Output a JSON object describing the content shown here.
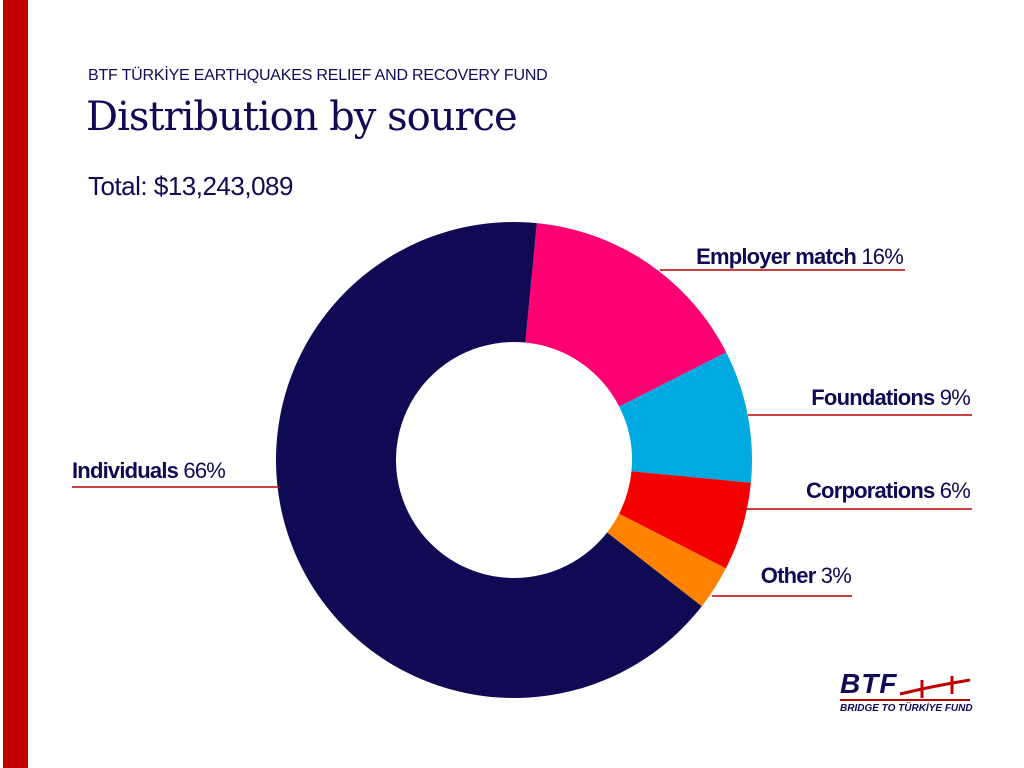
{
  "header": {
    "subtitle": "BTF TÜRKİYE EARTHQUAKES RELIEF AND RECOVERY FUND",
    "title": "Distribution by source",
    "total": "Total: $13,243,089"
  },
  "logo": {
    "text": "BTF",
    "tagline": "BRIDGE TO TÜRKİYE FUND"
  },
  "colors": {
    "accent": "#c00000",
    "text": "#100a55"
  },
  "chart_data": {
    "type": "pie",
    "donut": true,
    "title": "Distribution by source",
    "slices": [
      {
        "name": "Employer match",
        "value": 16,
        "label": "16%",
        "color": "#ff0072"
      },
      {
        "name": "Foundations",
        "value": 9,
        "label": "9%",
        "color": "#00a9e0"
      },
      {
        "name": "Corporations",
        "value": 6,
        "label": "6%",
        "color": "#f50000"
      },
      {
        "name": "Other",
        "value": 3,
        "label": "3%",
        "color": "#ff8200"
      },
      {
        "name": "Individuals",
        "value": 66,
        "label": "66%",
        "color": "#100a55"
      }
    ]
  }
}
